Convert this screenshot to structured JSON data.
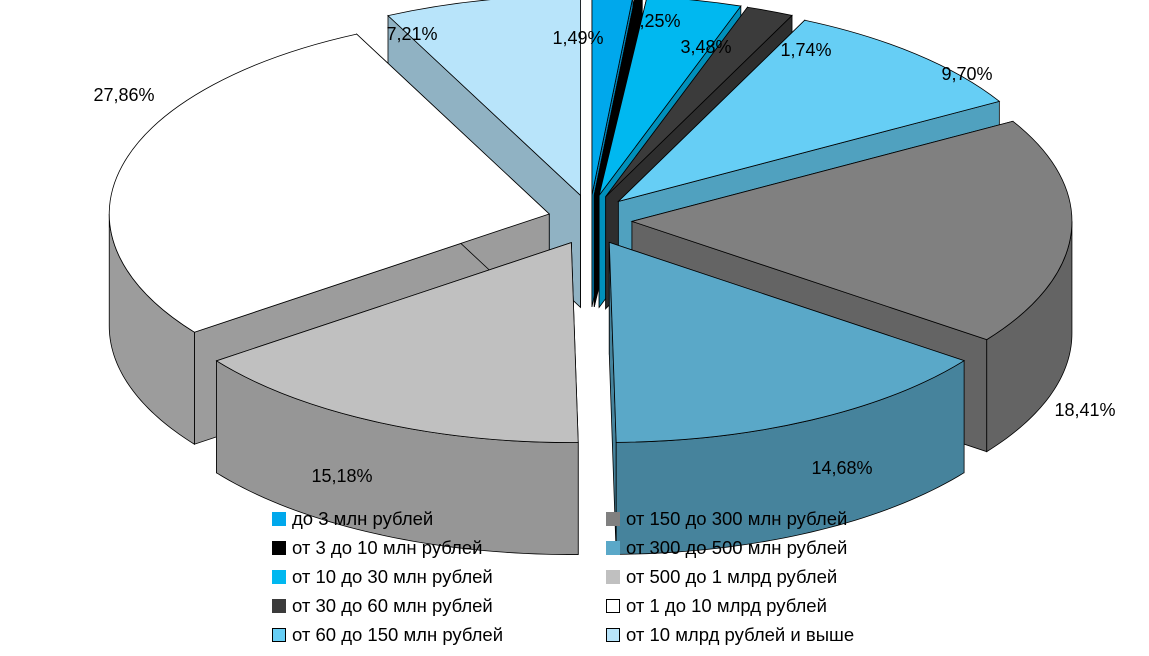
{
  "chart_data": {
    "type": "pie",
    "style": "3d-exploded",
    "categories": [
      "до 3 млн рублей",
      "от 3 до 10 млн рублей",
      "от 10 до 30 млн рублей",
      "от 30 до 60 млн рублей",
      "от 60 до 150 млн рублей",
      "от 150 до 300 млн рублей",
      "от 300 до 500 млн рублей",
      "от 500 до 1 млрд рублей",
      "от 1  до 10 млрд  рублей",
      "от 10 млрд рублей и выше"
    ],
    "values": [
      1.49,
      0.25,
      3.48,
      1.74,
      9.7,
      18.41,
      14.68,
      15.18,
      27.86,
      7.21
    ],
    "value_labels": [
      "1,49%",
      "0,25%",
      "3,48%",
      "1,74%",
      "9,70%",
      "18,41%",
      "14,68%",
      "15,18%",
      "27,86%",
      "7,21%"
    ],
    "colors": [
      "#00a8ec",
      "#000000",
      "#00b8f0",
      "#3b3b3b",
      "#66cef5",
      "#808080",
      "#5aa8c8",
      "#c0c0c0",
      "#ffffff",
      "#b8e4fa"
    ],
    "legend_position": "bottom"
  }
}
